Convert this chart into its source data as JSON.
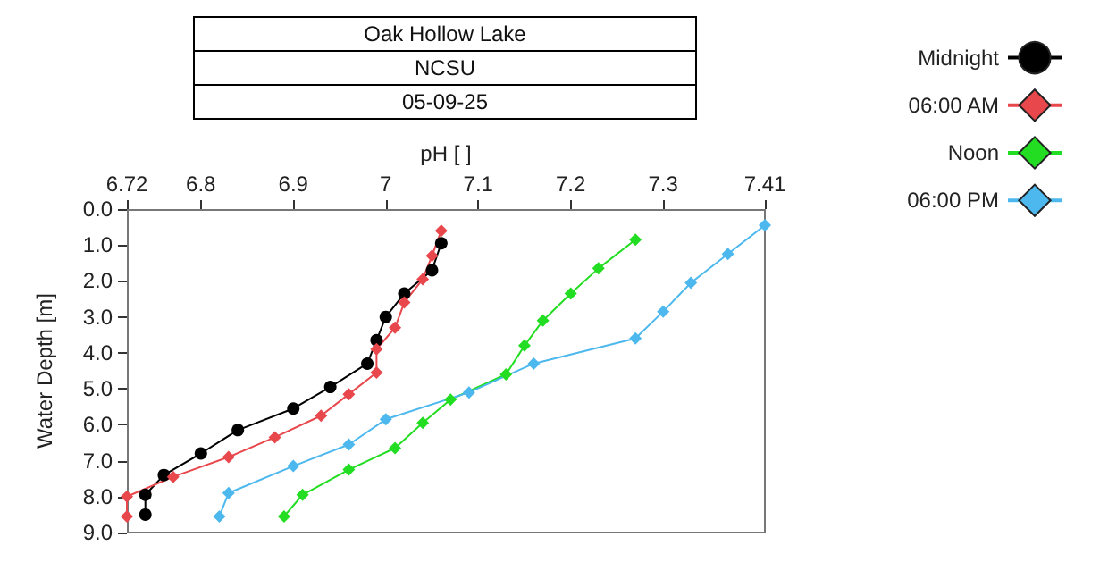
{
  "chart_data": {
    "type": "line",
    "title": "Oak Hollow Lake",
    "subtitle": "NCSU",
    "annotations": [
      "05-09-25"
    ],
    "xlabel": "pH [ ]",
    "ylabel": "Water Depth [m]",
    "xlim": [
      6.72,
      7.41
    ],
    "xticks": [
      6.72,
      6.8,
      6.9,
      7,
      7.1,
      7.2,
      7.3,
      7.41
    ],
    "ylim": [
      9,
      0
    ],
    "yticks": [
      {
        "value": 0,
        "label": "0.0"
      },
      {
        "value": 1,
        "label": "1.0"
      },
      {
        "value": 2,
        "label": "2.0"
      },
      {
        "value": 3,
        "label": "3.0"
      },
      {
        "value": 4,
        "label": "4.0"
      },
      {
        "value": 5,
        "label": "5.0"
      },
      {
        "value": 6,
        "label": "6.0"
      },
      {
        "value": 7,
        "label": "7.0"
      },
      {
        "value": 8,
        "label": "8.0"
      },
      {
        "value": 9,
        "label": "9.0"
      }
    ],
    "grid": false,
    "legend": "top right",
    "line_style": "solid",
    "series": [
      {
        "name": "Midnight",
        "color": "#000000",
        "marker": "circle",
        "x": [
          7.06,
          7.05,
          7.02,
          7.0,
          6.99,
          6.98,
          6.94,
          6.9,
          6.84,
          6.8,
          6.76,
          6.74,
          6.74
        ],
        "values": [
          0.95,
          1.7,
          2.35,
          3.0,
          3.65,
          4.3,
          4.95,
          5.55,
          6.15,
          6.8,
          7.4,
          7.95,
          8.5
        ]
      },
      {
        "name": "06:00 AM",
        "color": "#e8474c",
        "marker": "diamond",
        "x": [
          7.06,
          7.05,
          7.04,
          7.02,
          7.01,
          6.99,
          6.99,
          6.96,
          6.93,
          6.88,
          6.83,
          6.77,
          6.72,
          6.72
        ],
        "values": [
          0.6,
          1.3,
          1.95,
          2.6,
          3.3,
          3.9,
          4.55,
          5.15,
          5.75,
          6.35,
          6.9,
          7.45,
          8.0,
          8.55
        ]
      },
      {
        "name": "Noon",
        "color": "#22dd22",
        "marker": "diamond",
        "x": [
          7.27,
          7.23,
          7.2,
          7.17,
          7.15,
          7.13,
          7.07,
          7.04,
          7.01,
          6.96,
          6.91,
          6.89
        ],
        "values": [
          0.85,
          1.65,
          2.35,
          3.1,
          3.8,
          4.6,
          5.3,
          5.95,
          6.65,
          7.25,
          7.95,
          8.55
        ]
      },
      {
        "name": "06:00 PM",
        "color": "#4cb8ee",
        "marker": "diamond",
        "x": [
          7.41,
          7.37,
          7.33,
          7.3,
          7.27,
          7.16,
          7.09,
          7.0,
          6.96,
          6.9,
          6.83,
          6.82
        ],
        "values": [
          0.45,
          1.25,
          2.05,
          2.85,
          3.6,
          4.3,
          5.1,
          5.85,
          6.55,
          7.15,
          7.9,
          8.55
        ]
      }
    ]
  }
}
